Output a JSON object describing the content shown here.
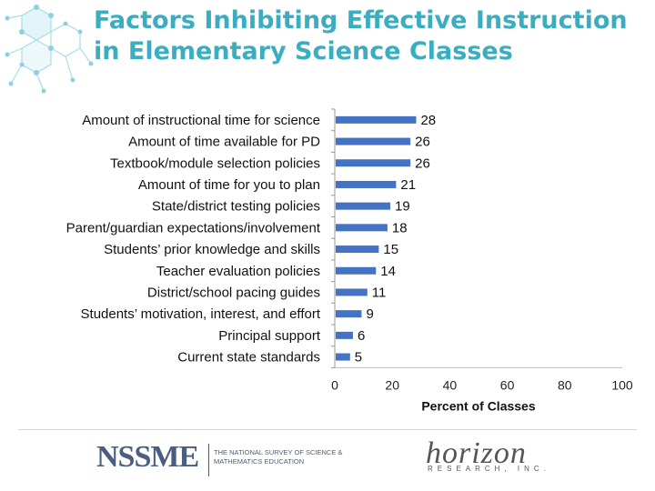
{
  "slide": {
    "title": "Factors Inhibiting Effective Instruction in Elementary Science Classes"
  },
  "colors": {
    "title": "#3aaec0",
    "bar": "#4472c4",
    "decoration": "#a8dde8",
    "logo": "#4a5e80"
  },
  "chart_data": {
    "type": "bar",
    "orientation": "horizontal",
    "categories": [
      "Amount of instructional time for science",
      "Amount of time available for PD",
      "Textbook/module selection policies",
      "Amount of time for you to plan",
      "State/district testing policies",
      "Parent/guardian expectations/involvement",
      "Students’ prior knowledge and skills",
      "Teacher evaluation policies",
      "District/school pacing guides",
      "Students’ motivation, interest, and effort",
      "Principal support",
      "Current state standards"
    ],
    "values": [
      28,
      26,
      26,
      21,
      19,
      18,
      15,
      14,
      11,
      9,
      6,
      5
    ],
    "data_labels": [
      "28",
      "26",
      "26",
      "21",
      "19",
      "18",
      "15",
      "14",
      "11",
      "9",
      "6",
      "5"
    ],
    "xlabel": "Percent of Classes",
    "xlim": [
      0,
      100
    ],
    "x_ticks": [
      "0",
      "20",
      "40",
      "60",
      "80",
      "100"
    ],
    "grid": false,
    "legend": "none"
  },
  "footer": {
    "logo_left_text": "NSSME",
    "logo_left_sub": "The National Survey of Science & Mathematics Education",
    "logo_right_text": "horizon",
    "logo_right_sub": "RESEARCH, INC."
  }
}
